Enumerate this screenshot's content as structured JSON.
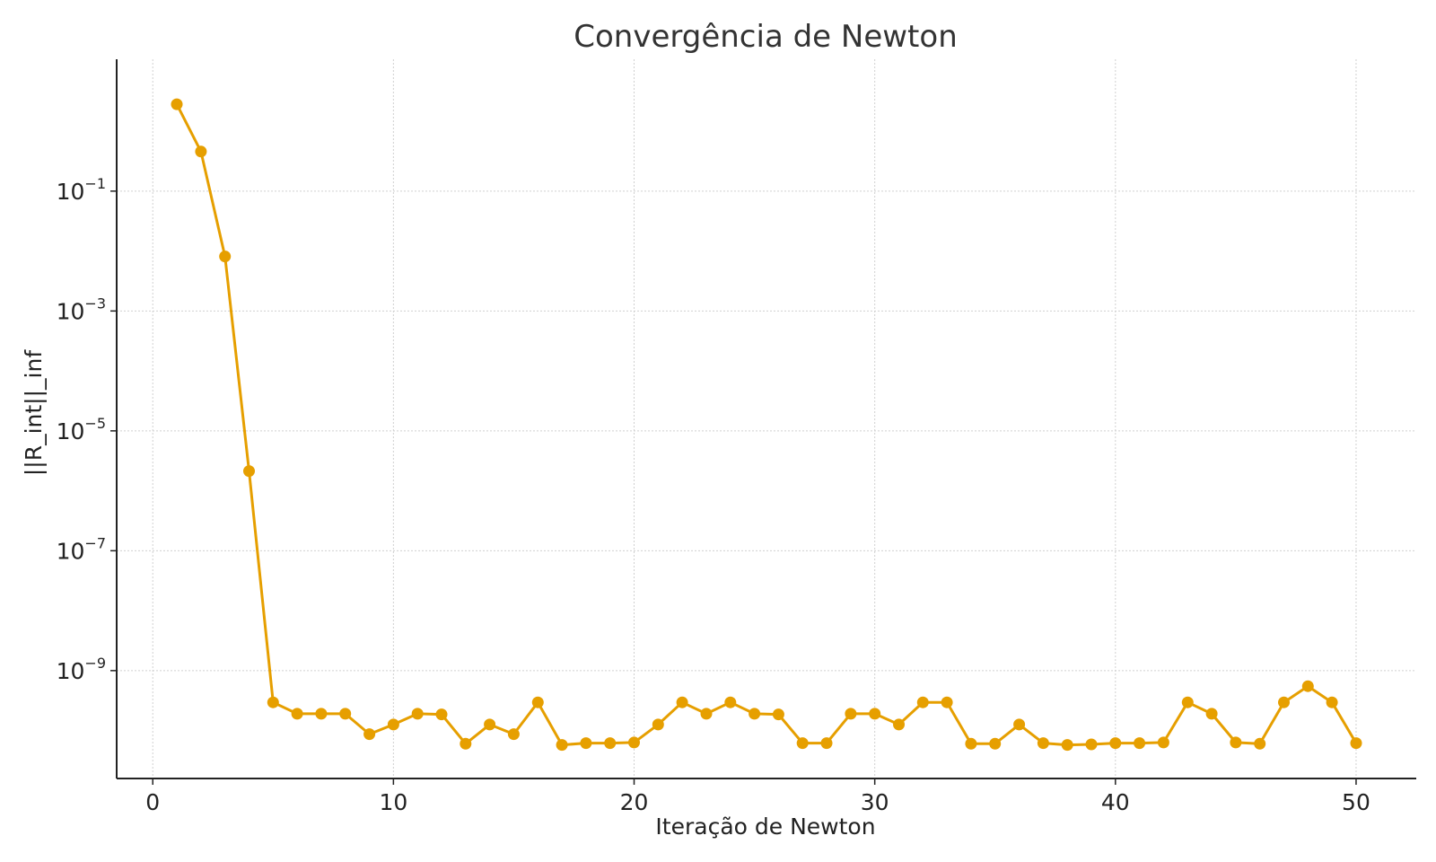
{
  "chart_data": {
    "type": "line",
    "title": "Convergência de Newton",
    "xlabel": "Iteração de Newton",
    "ylabel": "||R_int||_inf",
    "yscale": "log",
    "grid": true,
    "xlim": [
      -1.5,
      52.5
    ],
    "ylim_log10": [
      -10.8,
      1.2
    ],
    "xticks": [
      0,
      10,
      20,
      30,
      40,
      50
    ],
    "xtick_labels": [
      "0",
      "10",
      "20",
      "30",
      "40",
      "50"
    ],
    "yticks_exp": [
      -9,
      -7,
      -5,
      -3,
      -1
    ],
    "ytick_base": "10",
    "ytick_exponents": [
      "−9",
      "−7",
      "−5",
      "−3",
      "−1"
    ],
    "series": [
      {
        "color": "#E69F00",
        "x": [
          1,
          2,
          3,
          4,
          5,
          6,
          7,
          8,
          9,
          10,
          11,
          12,
          13,
          14,
          15,
          16,
          17,
          18,
          19,
          20,
          21,
          22,
          23,
          24,
          25,
          26,
          27,
          28,
          29,
          30,
          31,
          32,
          33,
          34,
          35,
          36,
          37,
          38,
          39,
          40,
          41,
          42,
          43,
          44,
          45,
          46,
          47,
          48,
          49,
          50
        ],
        "log10_y": [
          0.45,
          -0.34,
          -2.09,
          -5.67,
          -9.53,
          -9.72,
          -9.72,
          -9.72,
          -10.06,
          -9.9,
          -9.72,
          -9.73,
          -10.22,
          -9.9,
          -10.06,
          -9.53,
          -10.24,
          -10.21,
          -10.21,
          -10.2,
          -9.9,
          -9.53,
          -9.72,
          -9.53,
          -9.72,
          -9.73,
          -10.21,
          -10.21,
          -9.72,
          -9.72,
          -9.9,
          -9.53,
          -9.53,
          -10.22,
          -10.22,
          -9.9,
          -10.21,
          -10.24,
          -10.23,
          -10.21,
          -10.21,
          -10.2,
          -9.53,
          -9.72,
          -10.2,
          -10.22,
          -9.53,
          -9.26,
          -9.53,
          -10.21
        ]
      }
    ]
  }
}
